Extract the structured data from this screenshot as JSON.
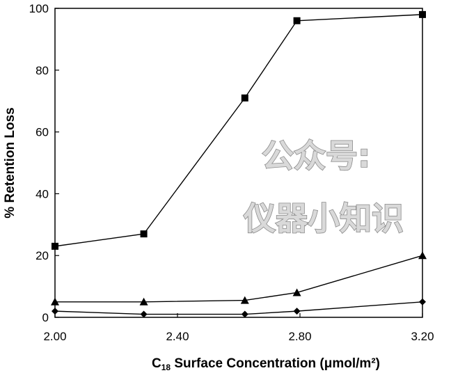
{
  "chart_data": {
    "type": "line",
    "xlabel": {
      "main": "C",
      "sub": "18",
      "rest": " Surface Concentration (μmol/m²)"
    },
    "ylabel": "% Retention Loss",
    "xlim": [
      2.0,
      3.2
    ],
    "ylim": [
      0,
      100
    ],
    "x_ticks": [
      "2.00",
      "2.40",
      "2.80",
      "3.20"
    ],
    "y_ticks": [
      "0",
      "20",
      "40",
      "60",
      "80",
      "100"
    ],
    "grid": false,
    "legend": "none",
    "series": [
      {
        "marker": "square",
        "x": [
          2.0,
          2.29,
          2.62,
          2.79,
          3.2
        ],
        "y": [
          23,
          27,
          71,
          96,
          98
        ]
      },
      {
        "marker": "triangle",
        "x": [
          2.0,
          2.29,
          2.62,
          2.79,
          3.2
        ],
        "y": [
          5,
          5,
          5.5,
          8,
          20
        ]
      },
      {
        "marker": "diamond",
        "x": [
          2.0,
          2.29,
          2.62,
          2.79,
          3.2
        ],
        "y": [
          2,
          1,
          1,
          2,
          5
        ]
      }
    ]
  },
  "watermark": {
    "line1": "公众号:",
    "line2": "仪器小知识"
  }
}
